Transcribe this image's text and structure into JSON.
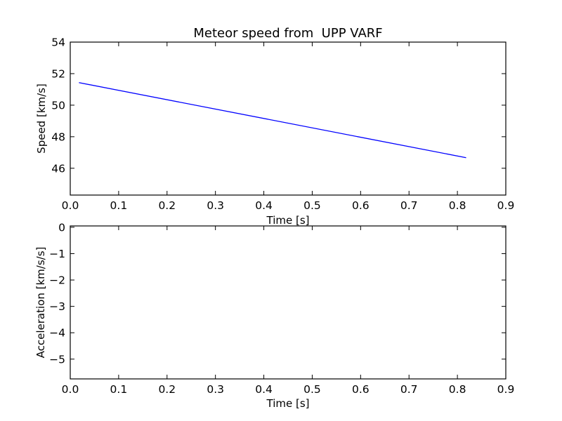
{
  "chart_data": [
    {
      "type": "line",
      "title": "Meteor speed from  UPP VARF",
      "xlabel": "Time [s]",
      "ylabel": "Speed [km/s]",
      "xlim": [
        0.0,
        0.9
      ],
      "ylim": [
        44.3,
        54.0
      ],
      "xticks": [
        0.0,
        0.1,
        0.2,
        0.3,
        0.4,
        0.5,
        0.6,
        0.7,
        0.8,
        0.9
      ],
      "xtick_labels": [
        "0.0",
        "0.1",
        "0.2",
        "0.3",
        "0.4",
        "0.5",
        "0.6",
        "0.7",
        "0.8",
        "0.9"
      ],
      "yticks": [
        46,
        48,
        50,
        52,
        54
      ],
      "ytick_labels": [
        "46",
        "48",
        "50",
        "52",
        "54"
      ],
      "grid": false,
      "series": [
        {
          "color": "#0000ff",
          "x": [
            0.018,
            0.818
          ],
          "y": [
            51.43,
            46.67
          ]
        }
      ]
    },
    {
      "type": "line",
      "title": "",
      "xlabel": "Time [s]",
      "ylabel": "Acceleration [km/s/s]",
      "xlim": [
        0.0,
        0.9
      ],
      "ylim": [
        -5.75,
        0.05
      ],
      "xticks": [
        0.0,
        0.1,
        0.2,
        0.3,
        0.4,
        0.5,
        0.6,
        0.7,
        0.8,
        0.9
      ],
      "xtick_labels": [
        "0.0",
        "0.1",
        "0.2",
        "0.3",
        "0.4",
        "0.5",
        "0.6",
        "0.7",
        "0.8",
        "0.9"
      ],
      "yticks": [
        0,
        -1,
        -2,
        -3,
        -4,
        -5
      ],
      "ytick_labels": [
        "0",
        "−1",
        "−2",
        "−3",
        "−4",
        "−5"
      ],
      "grid": false,
      "series": []
    }
  ]
}
